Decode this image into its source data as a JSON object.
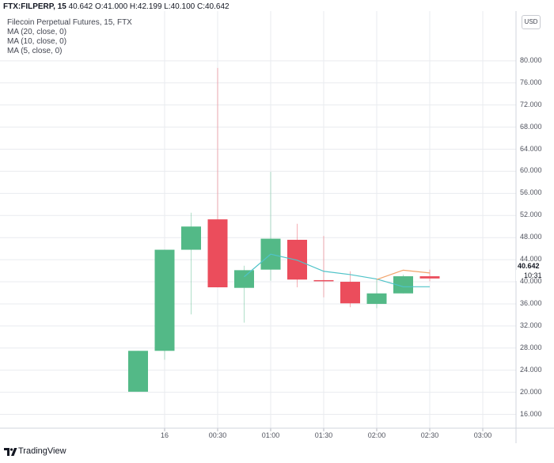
{
  "header": {
    "symbol": "FTX:FILPERP, 15",
    "last": "40.642",
    "ohlc": "O:41.000 H:42.199 L:40.100 C:40.642",
    "title": "Filecoin Perpetual Futures, 15, FTX",
    "indicators": [
      "MA (20, close, 0)",
      "MA (10, close, 0)",
      "MA (5, close, 0)"
    ]
  },
  "currency": "USD",
  "price_tag": "40.642",
  "time_tag": "10:31",
  "brand": "TradingView",
  "colors": {
    "up": "#53b987",
    "down": "#eb4d5c",
    "ma5": "#4fc3c8",
    "ma10": "#f2a36b",
    "grid": "#e9ebef"
  },
  "chart_data": {
    "type": "candlestick",
    "title": "Filecoin Perpetual Futures, 15, FTX",
    "x_ticks": [
      "16",
      "00:30",
      "01:00",
      "01:30",
      "02:00",
      "02:30",
      "03:00"
    ],
    "y_ticks": [
      16,
      20,
      24,
      28,
      32,
      36,
      40,
      44,
      48,
      52,
      56,
      60,
      64,
      68,
      72,
      76,
      80
    ],
    "ylim": [
      13.5,
      84.5
    ],
    "candles": [
      {
        "time": "23:45",
        "open": 20.1,
        "high": 27.5,
        "low": 20.1,
        "close": 27.5
      },
      {
        "time": "00:00",
        "open": 27.5,
        "high": 45.8,
        "low": 25.9,
        "close": 45.8
      },
      {
        "time": "00:15",
        "open": 45.8,
        "high": 52.5,
        "low": 34.1,
        "close": 50.0
      },
      {
        "time": "00:30",
        "open": 51.3,
        "high": 78.7,
        "low": 39.0,
        "close": 39.0
      },
      {
        "time": "00:45",
        "open": 38.9,
        "high": 42.9,
        "low": 32.6,
        "close": 42.1
      },
      {
        "time": "01:00",
        "open": 42.2,
        "high": 59.9,
        "low": 40.2,
        "close": 47.8
      },
      {
        "time": "01:15",
        "open": 47.6,
        "high": 50.5,
        "low": 39.0,
        "close": 40.4
      },
      {
        "time": "01:30",
        "open": 40.3,
        "high": 48.3,
        "low": 37.2,
        "close": 40.1
      },
      {
        "time": "01:45",
        "open": 40.0,
        "high": 41.9,
        "low": 35.4,
        "close": 36.1
      },
      {
        "time": "02:00",
        "open": 36.0,
        "high": 40.4,
        "low": 35.2,
        "close": 37.9
      },
      {
        "time": "02:15",
        "open": 37.9,
        "high": 41.3,
        "low": 37.9,
        "close": 41.0
      },
      {
        "time": "02:30",
        "open": 41.0,
        "high": 42.2,
        "low": 40.1,
        "close": 40.6
      }
    ],
    "ma5": [
      {
        "time": "00:45",
        "value": 40.9
      },
      {
        "time": "01:00",
        "value": 45.0
      },
      {
        "time": "01:15",
        "value": 43.9
      },
      {
        "time": "01:30",
        "value": 41.9
      },
      {
        "time": "01:45",
        "value": 41.3
      },
      {
        "time": "02:00",
        "value": 40.5
      },
      {
        "time": "02:15",
        "value": 39.1
      },
      {
        "time": "02:30",
        "value": 39.1
      }
    ],
    "ma10": [
      {
        "time": "02:00",
        "value": 40.4
      },
      {
        "time": "02:15",
        "value": 42.1
      },
      {
        "time": "02:30",
        "value": 41.6
      }
    ]
  }
}
